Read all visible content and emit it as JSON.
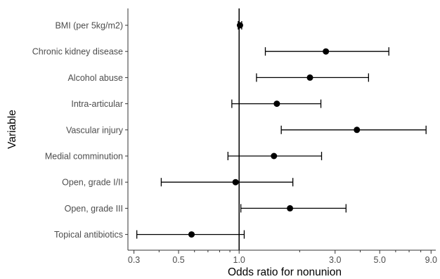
{
  "chart_data": {
    "type": "forest",
    "xlabel": "Odds ratio for nonunion",
    "ylabel": "Variable",
    "x_scale": "log",
    "xlim": [
      0.28,
      9.5
    ],
    "x_ticks": [
      0.3,
      0.5,
      1.0,
      3.0,
      5.0,
      9.0
    ],
    "x_tick_labels": [
      "0.3",
      "0.5",
      "1.0",
      "3.0",
      "5.0",
      "9.0"
    ],
    "x_minor_ticks": [
      0.4,
      0.6,
      0.7,
      0.8,
      0.9,
      2,
      4,
      6,
      7,
      8
    ],
    "reference_line": 1.0,
    "grid": false,
    "colors": {
      "marks": "#000000",
      "labels": "#4d4d4d"
    },
    "rows": [
      {
        "label": "BMI (per 5kg/m2)",
        "or": 1.01,
        "lower": 0.99,
        "upper": 1.03
      },
      {
        "label": "Chronic kidney disease",
        "or": 2.7,
        "lower": 1.35,
        "upper": 5.55
      },
      {
        "label": "Alcohol abuse",
        "or": 2.25,
        "lower": 1.22,
        "upper": 4.4
      },
      {
        "label": "Intra-articular",
        "or": 1.54,
        "lower": 0.92,
        "upper": 2.55
      },
      {
        "label": "Vascular injury",
        "or": 3.85,
        "lower": 1.62,
        "upper": 8.5
      },
      {
        "label": "Medial comminution",
        "or": 1.49,
        "lower": 0.88,
        "upper": 2.57
      },
      {
        "label": "Open, grade I/II",
        "or": 0.96,
        "lower": 0.41,
        "upper": 1.85
      },
      {
        "label": "Open, grade III",
        "or": 1.79,
        "lower": 1.02,
        "upper": 3.4
      },
      {
        "label": "Topical antibiotics",
        "or": 0.58,
        "lower": 0.31,
        "upper": 1.06
      }
    ]
  }
}
